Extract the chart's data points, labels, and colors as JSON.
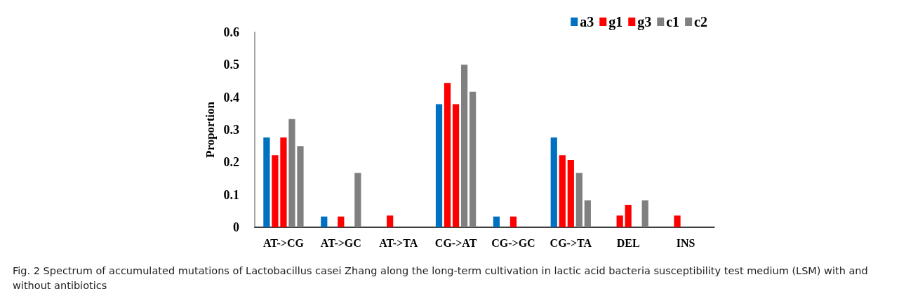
{
  "chart_data": {
    "type": "bar",
    "ylabel": "Proportion",
    "categories": [
      "AT->CG",
      "AT->GC",
      "AT->TA",
      "CG->AT",
      "CG->GC",
      "CG->TA",
      "DEL",
      "INS"
    ],
    "series": [
      {
        "name": "a3",
        "color": "#0070c0",
        "values": [
          0.276,
          0.033,
          0,
          0.379,
          0.033,
          0.276,
          0,
          0
        ]
      },
      {
        "name": "g1",
        "color": "#ff0000",
        "values": [
          0.222,
          0,
          0.036,
          0.444,
          0,
          0.222,
          0.036,
          0.036
        ]
      },
      {
        "name": "g3",
        "color": "#ff0000",
        "values": [
          0.276,
          0.033,
          0,
          0.379,
          0.033,
          0.207,
          0.069,
          0
        ]
      },
      {
        "name": "c1",
        "color": "#808080",
        "values": [
          0.333,
          0,
          0,
          0.5,
          0,
          0.167,
          0,
          0
        ]
      },
      {
        "name": "c2",
        "color": "#808080",
        "values": [
          0.25,
          0.167,
          0,
          0.417,
          0,
          0.083,
          0.083,
          0
        ]
      }
    ],
    "ylim": [
      0,
      0.6
    ],
    "yticks": [
      0,
      0.1,
      0.2,
      0.3,
      0.4,
      0.5,
      0.6
    ],
    "grid": false,
    "legend": "top right",
    "annotations": [
      "Fig. 2 Spectrum of accumulated mutations of Lactobacillus casei Zhang along the long-term cultivation in lactic acid bacteria susceptibility test medium (LSM) with and without antibiotics"
    ]
  }
}
